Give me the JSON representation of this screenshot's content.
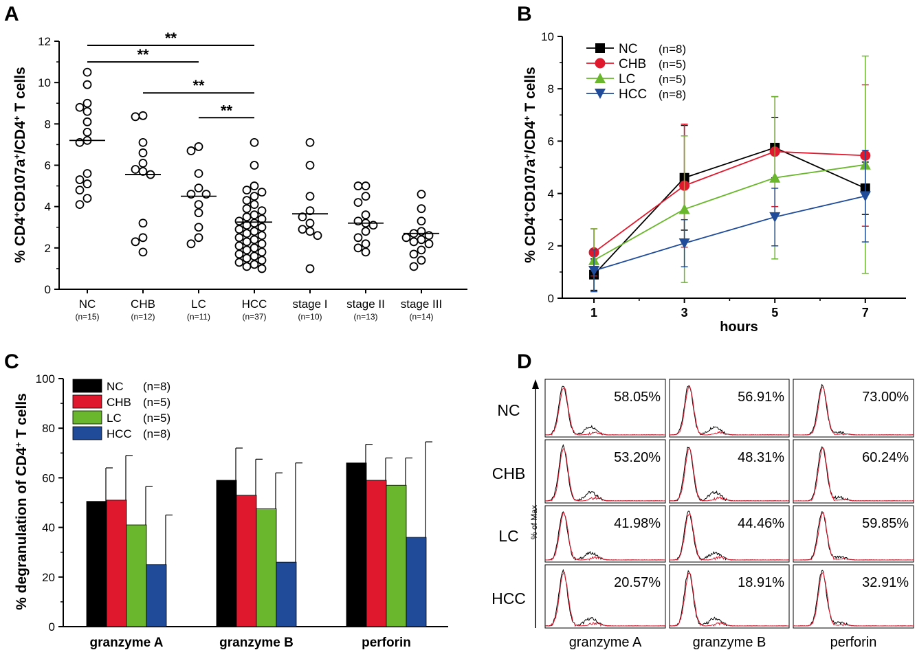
{
  "panel_letters": [
    "A",
    "B",
    "C",
    "D"
  ],
  "colors": {
    "NC": "#000000",
    "CHB": "#e0182d",
    "LC": "#6ab62c",
    "HCC": "#1f4b99",
    "trace_ctrl": "#000000",
    "trace_stim": "#e0182d"
  },
  "chart_data": [
    {
      "panel": "A",
      "type": "scatter",
      "ylabel_parts": [
        "% CD4",
        "+",
        "CD107a",
        "+",
        "/CD4",
        "+",
        " T cells"
      ],
      "ylim": [
        0,
        12
      ],
      "yticks": [
        0,
        2,
        4,
        6,
        8,
        10,
        12
      ],
      "categories": [
        {
          "label": "NC",
          "n": "(n=15)",
          "mean": 7.2,
          "points": [
            10.5,
            9.9,
            9.0,
            8.8,
            8.6,
            8.1,
            7.6,
            7.2,
            7.1,
            5.6,
            5.3,
            5.1,
            4.8,
            4.4,
            4.1
          ]
        },
        {
          "label": "CHB",
          "n": "(n=12)",
          "mean": 5.55,
          "points": [
            8.4,
            8.35,
            7.1,
            6.6,
            6.1,
            5.8,
            5.7,
            5.55,
            3.2,
            2.5,
            2.3,
            1.8
          ]
        },
        {
          "label": "LC",
          "n": "(n=11)",
          "mean": 4.5,
          "points": [
            6.9,
            6.7,
            5.6,
            4.9,
            4.6,
            4.6,
            4.1,
            3.7,
            3.0,
            2.5,
            2.2
          ]
        },
        {
          "label": "HCC",
          "n": "(n=37)",
          "mean": 3.25,
          "points": [
            7.1,
            6.0,
            5.0,
            4.8,
            4.7,
            4.5,
            4.3,
            4.1,
            3.9,
            3.8,
            3.6,
            3.5,
            3.4,
            3.3,
            3.2,
            3.1,
            3.0,
            2.9,
            2.8,
            2.7,
            2.6,
            2.5,
            2.4,
            2.3,
            2.2,
            2.1,
            2.0,
            1.9,
            1.8,
            1.7,
            1.6,
            1.5,
            1.4,
            1.3,
            1.2,
            1.1,
            1.0
          ]
        },
        {
          "label": "stage I",
          "n": "(n=10)",
          "mean": 3.65,
          "points": [
            7.1,
            6.0,
            4.5,
            3.8,
            3.5,
            3.2,
            2.9,
            2.8,
            2.6,
            1.0
          ]
        },
        {
          "label": "stage II",
          "n": "(n=13)",
          "mean": 3.2,
          "points": [
            5.0,
            5.0,
            4.5,
            4.2,
            3.6,
            3.3,
            3.2,
            3.1,
            2.8,
            2.5,
            2.2,
            2.0,
            1.8
          ]
        },
        {
          "label": "stage III",
          "n": "(n=14)",
          "mean": 2.7,
          "points": [
            4.6,
            3.9,
            3.3,
            2.8,
            2.7,
            2.6,
            2.5,
            2.4,
            2.3,
            2.2,
            1.9,
            1.7,
            1.4,
            1.1
          ]
        }
      ],
      "significance": [
        {
          "from": 0,
          "to": 3,
          "y": 11.8,
          "label": "**"
        },
        {
          "from": 0,
          "to": 2,
          "y": 11.0,
          "label": "**"
        },
        {
          "from": 1,
          "to": 3,
          "y": 9.5,
          "label": "**"
        },
        {
          "from": 2,
          "to": 3,
          "y": 8.3,
          "label": "**"
        }
      ]
    },
    {
      "panel": "B",
      "type": "line",
      "ylabel_parts": [
        "% CD4",
        "+",
        "CD107a",
        "+",
        "/CD4",
        "+",
        " T cells"
      ],
      "xlabel": "hours",
      "x": [
        1,
        3,
        5,
        7
      ],
      "xlim": [
        0.3,
        7.9
      ],
      "ylim": [
        0,
        10
      ],
      "yticks": [
        0,
        2,
        4,
        6,
        8,
        10
      ],
      "legend_position": "top-left",
      "series": [
        {
          "name": "NC",
          "n": "(n=8)",
          "marker": "square",
          "colorKey": "NC",
          "values": [
            0.9,
            4.6,
            5.75,
            4.2
          ],
          "err": [
            0.6,
            2.0,
            1.15,
            1.0
          ]
        },
        {
          "name": "CHB",
          "n": "(n=5)",
          "marker": "circle",
          "colorKey": "CHB",
          "values": [
            1.75,
            4.3,
            5.6,
            5.45
          ],
          "err": [
            0.9,
            2.35,
            2.1,
            2.7
          ]
        },
        {
          "name": "LC",
          "n": "(n=5)",
          "marker": "triangle-up",
          "colorKey": "LC",
          "values": [
            1.45,
            3.4,
            4.6,
            5.1
          ],
          "err": [
            1.2,
            2.8,
            3.1,
            4.15
          ]
        },
        {
          "name": "HCC",
          "n": "(n=8)",
          "marker": "triangle-down",
          "colorKey": "HCC",
          "values": [
            1.05,
            2.1,
            3.1,
            3.9
          ],
          "err": [
            0.8,
            0.9,
            1.1,
            1.75
          ]
        }
      ]
    },
    {
      "panel": "C",
      "type": "bar",
      "ylabel_parts": [
        "% degranulation of CD4",
        "+",
        " T cells"
      ],
      "ylim": [
        0,
        100
      ],
      "yticks": [
        0,
        20,
        40,
        60,
        80,
        100
      ],
      "categories": [
        "granzyme A",
        "granzyme B",
        "perforin"
      ],
      "legend_position": "top-left",
      "series": [
        {
          "name": "NC",
          "n": "(n=8)",
          "colorKey": "NC",
          "values": [
            50.5,
            59,
            66
          ],
          "err": [
            13.5,
            13,
            7.5
          ]
        },
        {
          "name": "CHB",
          "n": "(n=5)",
          "colorKey": "CHB",
          "values": [
            51,
            53,
            59
          ],
          "err": [
            18,
            14.5,
            9
          ]
        },
        {
          "name": "LC",
          "n": "(n=5)",
          "colorKey": "LC",
          "values": [
            41,
            47.5,
            57
          ],
          "err": [
            15.5,
            14.5,
            11
          ]
        },
        {
          "name": "HCC",
          "n": "(n=8)",
          "colorKey": "HCC",
          "values": [
            25,
            26,
            36
          ],
          "err": [
            20,
            40,
            38.5
          ]
        }
      ]
    },
    {
      "panel": "D",
      "type": "histogram-grid",
      "ylabel": "% of Max",
      "rows": [
        "NC",
        "CHB",
        "LC",
        "HCC"
      ],
      "columns": [
        "granzyme A",
        "granzyme B",
        "perforin"
      ],
      "percent_labels": [
        [
          "58.05%",
          "56.91%",
          "73.00%"
        ],
        [
          "53.20%",
          "48.31%",
          "60.24%"
        ],
        [
          "41.98%",
          "44.46%",
          "59.85%"
        ],
        [
          "20.57%",
          "18.91%",
          "32.91%"
        ]
      ]
    }
  ]
}
